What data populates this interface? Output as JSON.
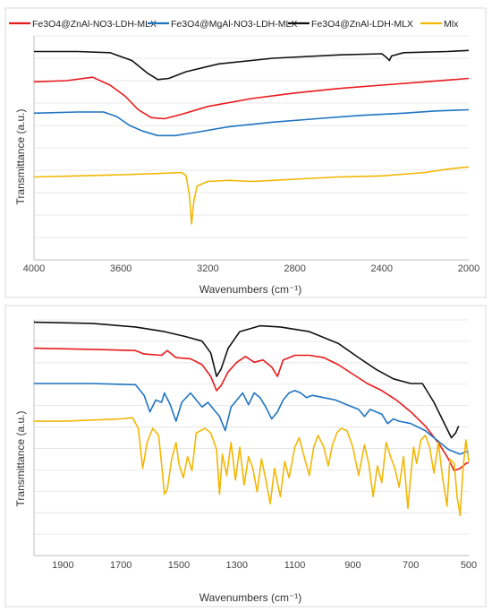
{
  "legend": [
    {
      "name": "Fe3O4@ZnAl-NO3-LDH-MLX",
      "color": "#e8191c"
    },
    {
      "name": "Fe3O4@MgAl-NO3-LDH-MLX",
      "color": "#1f74c1"
    },
    {
      "name": "Fe3O4@ZnAl-LDH-MLX",
      "color": "#111111"
    },
    {
      "name": "Mlx",
      "color": "#f2b705"
    }
  ],
  "chart_data": [
    {
      "type": "line",
      "xlabel": "Wavenumbers (cm⁻¹)",
      "ylabel": "Transmittance (a.u.)",
      "xlim": [
        4000,
        2000
      ],
      "x_reversed": true,
      "ylim": [
        0,
        10
      ],
      "y_tick_labels_shown": false,
      "grid": "horizontal",
      "x_ticks": [
        "4000",
        "3600",
        "3200",
        "2800",
        "2400",
        "2000"
      ],
      "series": [
        {
          "name": "Fe3O4@ZnAl-LDH-MLX",
          "color": "#111111",
          "points": [
            [
              4000,
              9.3
            ],
            [
              3800,
              9.3
            ],
            [
              3650,
              9.25
            ],
            [
              3550,
              8.9
            ],
            [
              3480,
              8.35
            ],
            [
              3430,
              8.05
            ],
            [
              3380,
              8.1
            ],
            [
              3300,
              8.4
            ],
            [
              3150,
              8.75
            ],
            [
              2900,
              9.0
            ],
            [
              2600,
              9.15
            ],
            [
              2400,
              9.2
            ],
            [
              2380,
              9.05
            ],
            [
              2365,
              8.9
            ],
            [
              2355,
              9.1
            ],
            [
              2300,
              9.25
            ],
            [
              2100,
              9.3
            ],
            [
              2000,
              9.35
            ]
          ]
        },
        {
          "name": "Fe3O4@ZnAl-NO3-LDH-MLX",
          "color": "#e8191c",
          "points": [
            [
              4000,
              7.95
            ],
            [
              3850,
              8.0
            ],
            [
              3730,
              8.15
            ],
            [
              3650,
              7.8
            ],
            [
              3580,
              7.3
            ],
            [
              3520,
              6.7
            ],
            [
              3460,
              6.35
            ],
            [
              3400,
              6.3
            ],
            [
              3320,
              6.5
            ],
            [
              3200,
              6.85
            ],
            [
              3000,
              7.2
            ],
            [
              2800,
              7.45
            ],
            [
              2600,
              7.65
            ],
            [
              2400,
              7.8
            ],
            [
              2200,
              7.95
            ],
            [
              2000,
              8.1
            ]
          ]
        },
        {
          "name": "Fe3O4@MgAl-NO3-LDH-MLX",
          "color": "#1f74c1",
          "points": [
            [
              4000,
              6.55
            ],
            [
              3800,
              6.6
            ],
            [
              3680,
              6.6
            ],
            [
              3620,
              6.4
            ],
            [
              3560,
              6.0
            ],
            [
              3500,
              5.75
            ],
            [
              3430,
              5.55
            ],
            [
              3350,
              5.55
            ],
            [
              3250,
              5.7
            ],
            [
              3100,
              5.95
            ],
            [
              2900,
              6.15
            ],
            [
              2700,
              6.3
            ],
            [
              2500,
              6.45
            ],
            [
              2300,
              6.55
            ],
            [
              2150,
              6.65
            ],
            [
              2000,
              6.7
            ]
          ]
        },
        {
          "name": "Mlx",
          "color": "#f2b705",
          "points": [
            [
              4000,
              3.7
            ],
            [
              3800,
              3.75
            ],
            [
              3600,
              3.8
            ],
            [
              3450,
              3.85
            ],
            [
              3320,
              3.9
            ],
            [
              3300,
              3.75
            ],
            [
              3285,
              2.9
            ],
            [
              3275,
              1.6
            ],
            [
              3265,
              2.6
            ],
            [
              3250,
              3.3
            ],
            [
              3200,
              3.5
            ],
            [
              3100,
              3.55
            ],
            [
              3000,
              3.5
            ],
            [
              2900,
              3.55
            ],
            [
              2800,
              3.6
            ],
            [
              2600,
              3.7
            ],
            [
              2400,
              3.75
            ],
            [
              2200,
              3.9
            ],
            [
              2100,
              4.05
            ],
            [
              2000,
              4.15
            ]
          ]
        }
      ]
    },
    {
      "type": "line",
      "xlabel": "Wavenumbers (cm⁻¹)",
      "ylabel": "Transmittance (a.u.)",
      "xlim": [
        2000,
        500
      ],
      "x_reversed": true,
      "ylim": [
        0,
        10
      ],
      "y_tick_labels_shown": false,
      "grid": "horizontal",
      "x_ticks": [
        "1900",
        "1700",
        "1500",
        "1300",
        "1100",
        "900",
        "700",
        "500"
      ],
      "series": [
        {
          "name": "Fe3O4@ZnAl-LDH-MLX",
          "color": "#111111",
          "points": [
            [
              2000,
              9.9
            ],
            [
              1800,
              9.85
            ],
            [
              1650,
              9.7
            ],
            [
              1550,
              9.5
            ],
            [
              1480,
              9.3
            ],
            [
              1420,
              9.1
            ],
            [
              1390,
              8.6
            ],
            [
              1370,
              7.6
            ],
            [
              1355,
              7.9
            ],
            [
              1330,
              8.8
            ],
            [
              1290,
              9.5
            ],
            [
              1220,
              9.75
            ],
            [
              1150,
              9.7
            ],
            [
              1050,
              9.5
            ],
            [
              950,
              9.0
            ],
            [
              880,
              8.4
            ],
            [
              820,
              7.9
            ],
            [
              760,
              7.5
            ],
            [
              700,
              7.3
            ],
            [
              660,
              7.3
            ],
            [
              620,
              6.5
            ],
            [
              580,
              5.5
            ],
            [
              560,
              5.0
            ],
            [
              545,
              5.2
            ],
            [
              535,
              5.5
            ]
          ]
        },
        {
          "name": "Fe3O4@ZnAl-NO3-LDH-MLX",
          "color": "#e8191c",
          "points": [
            [
              2000,
              8.8
            ],
            [
              1800,
              8.75
            ],
            [
              1650,
              8.7
            ],
            [
              1620,
              8.55
            ],
            [
              1560,
              8.5
            ],
            [
              1540,
              8.7
            ],
            [
              1510,
              8.4
            ],
            [
              1460,
              8.35
            ],
            [
              1420,
              8.1
            ],
            [
              1390,
              7.6
            ],
            [
              1370,
              7.0
            ],
            [
              1355,
              7.2
            ],
            [
              1330,
              7.8
            ],
            [
              1300,
              8.2
            ],
            [
              1270,
              8.45
            ],
            [
              1240,
              8.2
            ],
            [
              1210,
              8.3
            ],
            [
              1180,
              8.0
            ],
            [
              1160,
              7.6
            ],
            [
              1140,
              8.3
            ],
            [
              1100,
              8.5
            ],
            [
              1050,
              8.5
            ],
            [
              1000,
              8.4
            ],
            [
              950,
              8.1
            ],
            [
              900,
              7.7
            ],
            [
              850,
              7.3
            ],
            [
              800,
              7.0
            ],
            [
              750,
              6.6
            ],
            [
              700,
              6.1
            ],
            [
              650,
              5.5
            ],
            [
              600,
              4.7
            ],
            [
              570,
              4.1
            ],
            [
              550,
              3.6
            ],
            [
              530,
              3.7
            ],
            [
              510,
              3.9
            ],
            [
              500,
              3.95
            ]
          ]
        },
        {
          "name": "Fe3O4@MgAl-NO3-LDH-MLX",
          "color": "#1f74c1",
          "points": [
            [
              2000,
              7.3
            ],
            [
              1800,
              7.3
            ],
            [
              1650,
              7.25
            ],
            [
              1620,
              6.8
            ],
            [
              1600,
              6.1
            ],
            [
              1580,
              6.6
            ],
            [
              1560,
              6.5
            ],
            [
              1550,
              6.9
            ],
            [
              1530,
              6.4
            ],
            [
              1510,
              5.7
            ],
            [
              1490,
              6.5
            ],
            [
              1460,
              6.9
            ],
            [
              1440,
              6.6
            ],
            [
              1420,
              6.3
            ],
            [
              1400,
              6.5
            ],
            [
              1380,
              6.2
            ],
            [
              1360,
              5.9
            ],
            [
              1340,
              5.3
            ],
            [
              1320,
              6.3
            ],
            [
              1300,
              6.6
            ],
            [
              1280,
              6.9
            ],
            [
              1260,
              6.4
            ],
            [
              1240,
              6.9
            ],
            [
              1220,
              6.7
            ],
            [
              1200,
              6.3
            ],
            [
              1180,
              5.8
            ],
            [
              1160,
              6.1
            ],
            [
              1140,
              6.6
            ],
            [
              1120,
              6.9
            ],
            [
              1100,
              7.0
            ],
            [
              1080,
              6.9
            ],
            [
              1060,
              6.7
            ],
            [
              1040,
              6.8
            ],
            [
              1000,
              6.7
            ],
            [
              960,
              6.6
            ],
            [
              920,
              6.4
            ],
            [
              880,
              6.2
            ],
            [
              860,
              5.9
            ],
            [
              840,
              6.2
            ],
            [
              800,
              6.0
            ],
            [
              780,
              5.6
            ],
            [
              760,
              5.8
            ],
            [
              740,
              5.7
            ],
            [
              700,
              5.6
            ],
            [
              650,
              5.3
            ],
            [
              600,
              4.8
            ],
            [
              570,
              4.5
            ],
            [
              550,
              4.4
            ],
            [
              530,
              4.3
            ],
            [
              510,
              4.4
            ],
            [
              500,
              4.4
            ]
          ]
        },
        {
          "name": "Mlx",
          "color": "#f2b705",
          "points": [
            [
              2000,
              5.7
            ],
            [
              1900,
              5.7
            ],
            [
              1800,
              5.75
            ],
            [
              1700,
              5.8
            ],
            [
              1660,
              5.85
            ],
            [
              1640,
              5.4
            ],
            [
              1625,
              3.7
            ],
            [
              1610,
              4.8
            ],
            [
              1590,
              5.4
            ],
            [
              1570,
              5.1
            ],
            [
              1560,
              3.9
            ],
            [
              1550,
              2.6
            ],
            [
              1540,
              2.8
            ],
            [
              1525,
              4.1
            ],
            [
              1510,
              4.8
            ],
            [
              1500,
              3.9
            ],
            [
              1485,
              3.3
            ],
            [
              1470,
              4.2
            ],
            [
              1455,
              3.6
            ],
            [
              1440,
              5.2
            ],
            [
              1410,
              5.4
            ],
            [
              1390,
              5.2
            ],
            [
              1370,
              4.5
            ],
            [
              1360,
              2.6
            ],
            [
              1350,
              4.3
            ],
            [
              1335,
              3.4
            ],
            [
              1320,
              4.8
            ],
            [
              1305,
              3.2
            ],
            [
              1290,
              4.6
            ],
            [
              1275,
              3.0
            ],
            [
              1260,
              4.2
            ],
            [
              1245,
              3.7
            ],
            [
              1230,
              2.7
            ],
            [
              1215,
              4.1
            ],
            [
              1200,
              3.2
            ],
            [
              1185,
              2.2
            ],
            [
              1170,
              3.7
            ],
            [
              1150,
              2.5
            ],
            [
              1135,
              4.0
            ],
            [
              1120,
              3.3
            ],
            [
              1100,
              4.6
            ],
            [
              1085,
              5.0
            ],
            [
              1070,
              4.3
            ],
            [
              1050,
              3.4
            ],
            [
              1035,
              4.6
            ],
            [
              1020,
              5.1
            ],
            [
              1000,
              4.6
            ],
            [
              985,
              3.8
            ],
            [
              970,
              4.7
            ],
            [
              955,
              5.2
            ],
            [
              940,
              5.4
            ],
            [
              920,
              5.3
            ],
            [
              900,
              4.6
            ],
            [
              880,
              3.4
            ],
            [
              860,
              4.7
            ],
            [
              845,
              3.9
            ],
            [
              830,
              2.5
            ],
            [
              815,
              3.8
            ],
            [
              800,
              3.1
            ],
            [
              785,
              4.8
            ],
            [
              770,
              4.2
            ],
            [
              755,
              3.7
            ],
            [
              740,
              2.9
            ],
            [
              725,
              4.2
            ],
            [
              710,
              2.0
            ],
            [
              700,
              3.4
            ],
            [
              690,
              4.6
            ],
            [
              680,
              3.9
            ],
            [
              665,
              4.9
            ],
            [
              650,
              5.1
            ],
            [
              635,
              4.6
            ],
            [
              620,
              3.5
            ],
            [
              605,
              4.8
            ],
            [
              590,
              3.3
            ],
            [
              575,
              2.1
            ],
            [
              565,
              4.1
            ],
            [
              550,
              3.9
            ],
            [
              540,
              2.5
            ],
            [
              530,
              1.7
            ],
            [
              520,
              3.6
            ],
            [
              510,
              4.9
            ],
            [
              500,
              4.0
            ]
          ]
        }
      ]
    }
  ]
}
